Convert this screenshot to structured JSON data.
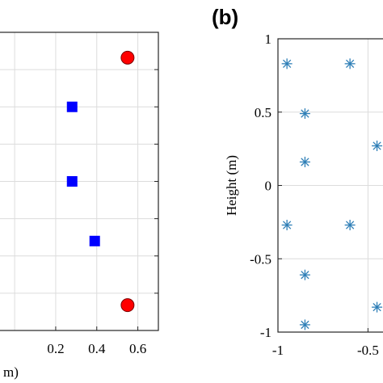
{
  "chart_data": [
    {
      "type": "scatter",
      "panel_label": "",
      "xlabel": "m)",
      "ylabel": "",
      "xlim": [
        -0.15,
        0.7
      ],
      "ylim": [
        -1,
        1
      ],
      "xticks": [
        0.2,
        0.4,
        0.6
      ],
      "xtick_labels": [
        "0.2",
        "0.4",
        "0.6"
      ],
      "grid": true,
      "series": [
        {
          "marker": "circle",
          "color": "#ff0000",
          "points": [
            {
              "x": 0.55,
              "y": 0.83
            },
            {
              "x": 0.55,
              "y": -0.83
            }
          ]
        },
        {
          "marker": "square",
          "color": "#0000ff",
          "points": [
            {
              "x": 0.28,
              "y": 0.5
            },
            {
              "x": 0.28,
              "y": 0.0
            },
            {
              "x": 0.39,
              "y": -0.4
            }
          ]
        }
      ]
    },
    {
      "type": "scatter",
      "panel_label": "(b)",
      "xlabel": "",
      "ylabel": "Height (m)",
      "xlim": [
        -1,
        -0.3
      ],
      "ylim": [
        -1,
        1
      ],
      "xticks": [
        -1,
        -0.5
      ],
      "xtick_labels": [
        "-1",
        "-0.5"
      ],
      "yticks": [
        1,
        0.5,
        0,
        -0.5,
        -1
      ],
      "ytick_labels": [
        "1",
        "0.5",
        "0",
        "-0.5",
        "-1"
      ],
      "grid": true,
      "series": [
        {
          "marker": "asterisk",
          "color": "#2f7fb7",
          "points": [
            {
              "x": -0.95,
              "y": 0.83
            },
            {
              "x": -0.6,
              "y": 0.83
            },
            {
              "x": -0.85,
              "y": 0.49
            },
            {
              "x": -0.45,
              "y": 0.27
            },
            {
              "x": -0.85,
              "y": 0.16
            },
            {
              "x": -0.95,
              "y": -0.27
            },
            {
              "x": -0.6,
              "y": -0.27
            },
            {
              "x": -0.85,
              "y": -0.61
            },
            {
              "x": -0.45,
              "y": -0.83
            },
            {
              "x": -0.85,
              "y": -0.95
            }
          ]
        }
      ]
    }
  ]
}
